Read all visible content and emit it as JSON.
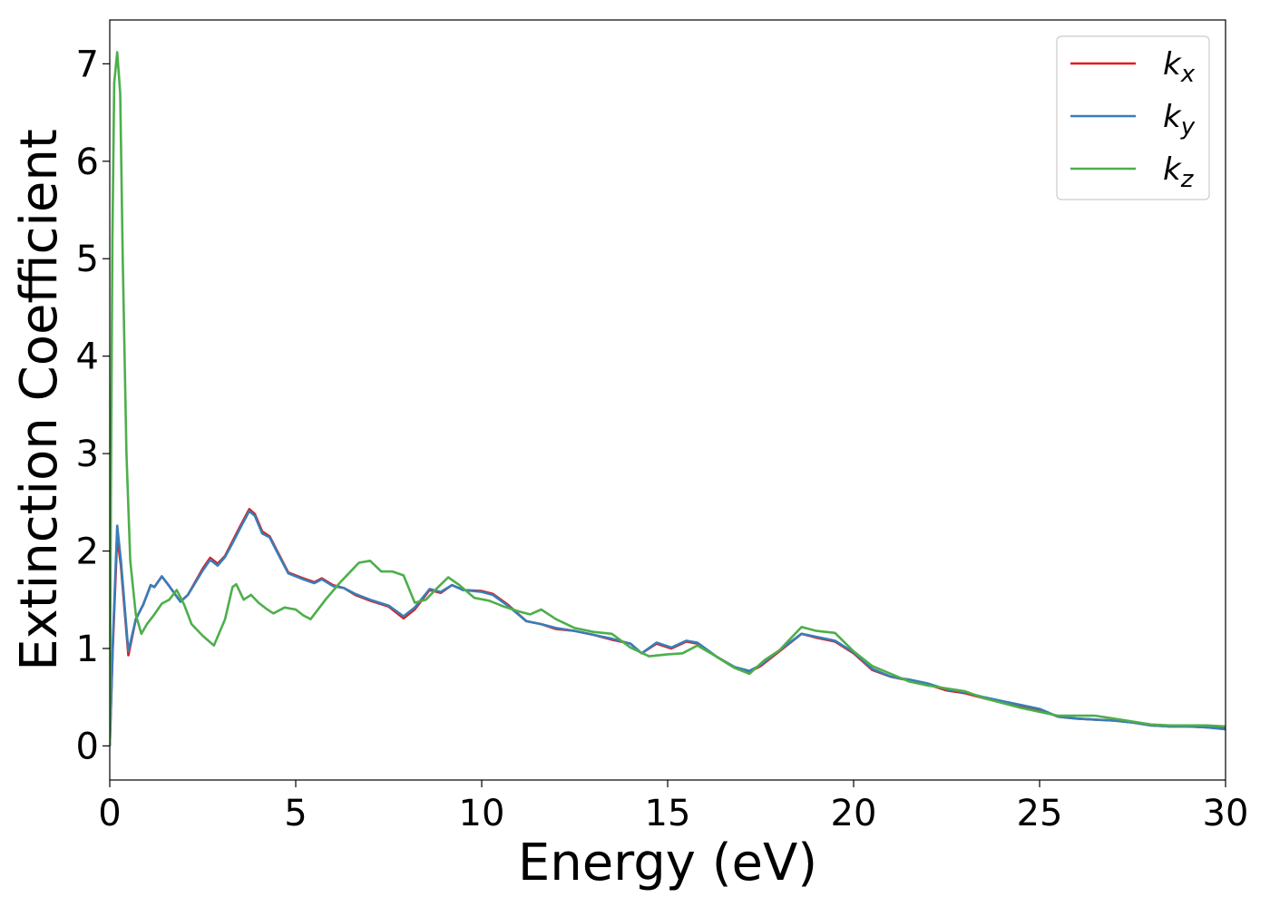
{
  "chart_data": {
    "type": "line",
    "title": "",
    "xlabel": "Energy (eV)",
    "ylabel": "Extinction Coefficient",
    "xlim": [
      0,
      30
    ],
    "ylim": [
      -0.35,
      7.45
    ],
    "xticks": [
      0,
      5,
      10,
      15,
      20,
      25,
      30
    ],
    "xtick_labels": [
      "0",
      "5",
      "10",
      "15",
      "20",
      "25",
      "30"
    ],
    "yticks": [
      0,
      1,
      2,
      3,
      4,
      5,
      6,
      7
    ],
    "ytick_labels": [
      "0",
      "1",
      "2",
      "3",
      "4",
      "5",
      "6",
      "7"
    ],
    "grid": false,
    "legend_position": "top-right",
    "series": [
      {
        "name": "k",
        "subscript": "x",
        "color": "#e41a1c",
        "points": [
          [
            0,
            0
          ],
          [
            0.08,
            1.0
          ],
          [
            0.2,
            2.15
          ],
          [
            0.3,
            1.85
          ],
          [
            0.5,
            0.93
          ],
          [
            0.7,
            1.3
          ],
          [
            0.9,
            1.45
          ],
          [
            1.1,
            1.65
          ],
          [
            1.2,
            1.63
          ],
          [
            1.4,
            1.74
          ],
          [
            1.6,
            1.64
          ],
          [
            1.9,
            1.48
          ],
          [
            2.1,
            1.55
          ],
          [
            2.5,
            1.82
          ],
          [
            2.7,
            1.93
          ],
          [
            2.9,
            1.87
          ],
          [
            3.1,
            1.95
          ],
          [
            3.3,
            2.1
          ],
          [
            3.5,
            2.25
          ],
          [
            3.75,
            2.43
          ],
          [
            3.9,
            2.38
          ],
          [
            4.1,
            2.2
          ],
          [
            4.3,
            2.15
          ],
          [
            4.5,
            2.0
          ],
          [
            4.8,
            1.78
          ],
          [
            5.2,
            1.72
          ],
          [
            5.5,
            1.68
          ],
          [
            5.7,
            1.72
          ],
          [
            6.0,
            1.65
          ],
          [
            6.3,
            1.62
          ],
          [
            6.6,
            1.55
          ],
          [
            7.0,
            1.49
          ],
          [
            7.5,
            1.43
          ],
          [
            7.9,
            1.31
          ],
          [
            8.2,
            1.4
          ],
          [
            8.6,
            1.6
          ],
          [
            8.9,
            1.57
          ],
          [
            9.2,
            1.65
          ],
          [
            9.5,
            1.6
          ],
          [
            10.0,
            1.59
          ],
          [
            10.3,
            1.56
          ],
          [
            10.7,
            1.45
          ],
          [
            11.2,
            1.28
          ],
          [
            11.6,
            1.25
          ],
          [
            12.0,
            1.2
          ],
          [
            12.5,
            1.18
          ],
          [
            13.0,
            1.14
          ],
          [
            13.5,
            1.09
          ],
          [
            14.0,
            1.05
          ],
          [
            14.3,
            0.95
          ],
          [
            14.7,
            1.05
          ],
          [
            15.1,
            1.0
          ],
          [
            15.5,
            1.07
          ],
          [
            15.8,
            1.05
          ],
          [
            16.3,
            0.92
          ],
          [
            16.8,
            0.8
          ],
          [
            17.2,
            0.76
          ],
          [
            17.5,
            0.82
          ],
          [
            18.0,
            0.97
          ],
          [
            18.6,
            1.15
          ],
          [
            19.0,
            1.11
          ],
          [
            19.5,
            1.07
          ],
          [
            20.0,
            0.95
          ],
          [
            20.5,
            0.78
          ],
          [
            21.0,
            0.71
          ],
          [
            21.5,
            0.67
          ],
          [
            22.0,
            0.63
          ],
          [
            22.5,
            0.57
          ],
          [
            23.0,
            0.54
          ],
          [
            23.5,
            0.49
          ],
          [
            24.0,
            0.45
          ],
          [
            24.5,
            0.41
          ],
          [
            25.0,
            0.37
          ],
          [
            25.5,
            0.3
          ],
          [
            26.0,
            0.28
          ],
          [
            26.5,
            0.27
          ],
          [
            27.0,
            0.26
          ],
          [
            27.5,
            0.24
          ],
          [
            28.0,
            0.21
          ],
          [
            28.5,
            0.2
          ],
          [
            29.0,
            0.2
          ],
          [
            29.5,
            0.19
          ],
          [
            30.0,
            0.18
          ]
        ]
      },
      {
        "name": "k",
        "subscript": "y",
        "color": "#377eb8",
        "points": [
          [
            0,
            0
          ],
          [
            0.08,
            1.05
          ],
          [
            0.2,
            2.26
          ],
          [
            0.3,
            1.9
          ],
          [
            0.5,
            0.97
          ],
          [
            0.7,
            1.3
          ],
          [
            0.9,
            1.45
          ],
          [
            1.1,
            1.65
          ],
          [
            1.2,
            1.63
          ],
          [
            1.4,
            1.74
          ],
          [
            1.6,
            1.64
          ],
          [
            1.9,
            1.48
          ],
          [
            2.1,
            1.55
          ],
          [
            2.5,
            1.8
          ],
          [
            2.7,
            1.91
          ],
          [
            2.9,
            1.85
          ],
          [
            3.1,
            1.94
          ],
          [
            3.3,
            2.08
          ],
          [
            3.5,
            2.23
          ],
          [
            3.75,
            2.41
          ],
          [
            3.9,
            2.36
          ],
          [
            4.1,
            2.18
          ],
          [
            4.3,
            2.14
          ],
          [
            4.5,
            1.99
          ],
          [
            4.8,
            1.77
          ],
          [
            5.2,
            1.71
          ],
          [
            5.5,
            1.67
          ],
          [
            5.7,
            1.71
          ],
          [
            6.0,
            1.64
          ],
          [
            6.3,
            1.62
          ],
          [
            6.6,
            1.56
          ],
          [
            7.0,
            1.5
          ],
          [
            7.5,
            1.44
          ],
          [
            7.9,
            1.33
          ],
          [
            8.2,
            1.42
          ],
          [
            8.6,
            1.61
          ],
          [
            8.9,
            1.58
          ],
          [
            9.2,
            1.65
          ],
          [
            9.5,
            1.6
          ],
          [
            10.0,
            1.58
          ],
          [
            10.3,
            1.55
          ],
          [
            10.7,
            1.44
          ],
          [
            11.2,
            1.28
          ],
          [
            11.6,
            1.25
          ],
          [
            12.0,
            1.21
          ],
          [
            12.5,
            1.18
          ],
          [
            13.0,
            1.14
          ],
          [
            13.5,
            1.1
          ],
          [
            14.0,
            1.05
          ],
          [
            14.3,
            0.95
          ],
          [
            14.7,
            1.06
          ],
          [
            15.1,
            1.01
          ],
          [
            15.5,
            1.08
          ],
          [
            15.8,
            1.06
          ],
          [
            16.3,
            0.92
          ],
          [
            16.8,
            0.81
          ],
          [
            17.2,
            0.77
          ],
          [
            17.5,
            0.83
          ],
          [
            18.0,
            0.98
          ],
          [
            18.6,
            1.15
          ],
          [
            19.0,
            1.12
          ],
          [
            19.5,
            1.08
          ],
          [
            20.0,
            0.96
          ],
          [
            20.5,
            0.79
          ],
          [
            21.0,
            0.71
          ],
          [
            21.5,
            0.68
          ],
          [
            22.0,
            0.64
          ],
          [
            22.5,
            0.58
          ],
          [
            23.0,
            0.55
          ],
          [
            23.5,
            0.5
          ],
          [
            24.0,
            0.46
          ],
          [
            24.5,
            0.42
          ],
          [
            25.0,
            0.38
          ],
          [
            25.5,
            0.3
          ],
          [
            26.0,
            0.28
          ],
          [
            26.5,
            0.27
          ],
          [
            27.0,
            0.26
          ],
          [
            27.5,
            0.24
          ],
          [
            28.0,
            0.21
          ],
          [
            28.5,
            0.2
          ],
          [
            29.0,
            0.2
          ],
          [
            29.5,
            0.19
          ],
          [
            30.0,
            0.17
          ]
        ]
      },
      {
        "name": "k",
        "subscript": "z",
        "color": "#4daf4a",
        "points": [
          [
            0,
            0
          ],
          [
            0.03,
            2.5
          ],
          [
            0.07,
            5.2
          ],
          [
            0.12,
            6.8
          ],
          [
            0.2,
            7.12
          ],
          [
            0.28,
            6.7
          ],
          [
            0.35,
            5.0
          ],
          [
            0.45,
            3.0
          ],
          [
            0.55,
            1.9
          ],
          [
            0.7,
            1.35
          ],
          [
            0.85,
            1.15
          ],
          [
            1.0,
            1.25
          ],
          [
            1.2,
            1.35
          ],
          [
            1.4,
            1.46
          ],
          [
            1.6,
            1.5
          ],
          [
            1.8,
            1.6
          ],
          [
            2.0,
            1.45
          ],
          [
            2.2,
            1.25
          ],
          [
            2.5,
            1.13
          ],
          [
            2.8,
            1.03
          ],
          [
            3.1,
            1.3
          ],
          [
            3.3,
            1.63
          ],
          [
            3.4,
            1.66
          ],
          [
            3.6,
            1.5
          ],
          [
            3.8,
            1.55
          ],
          [
            4.0,
            1.47
          ],
          [
            4.2,
            1.41
          ],
          [
            4.4,
            1.36
          ],
          [
            4.7,
            1.42
          ],
          [
            5.0,
            1.4
          ],
          [
            5.2,
            1.34
          ],
          [
            5.4,
            1.3
          ],
          [
            5.8,
            1.5
          ],
          [
            6.2,
            1.68
          ],
          [
            6.7,
            1.88
          ],
          [
            7.0,
            1.9
          ],
          [
            7.3,
            1.79
          ],
          [
            7.6,
            1.79
          ],
          [
            7.9,
            1.75
          ],
          [
            8.2,
            1.47
          ],
          [
            8.5,
            1.5
          ],
          [
            8.8,
            1.62
          ],
          [
            9.1,
            1.73
          ],
          [
            9.4,
            1.65
          ],
          [
            9.8,
            1.52
          ],
          [
            10.2,
            1.49
          ],
          [
            10.6,
            1.43
          ],
          [
            11.0,
            1.38
          ],
          [
            11.3,
            1.35
          ],
          [
            11.6,
            1.4
          ],
          [
            12.0,
            1.3
          ],
          [
            12.5,
            1.21
          ],
          [
            13.0,
            1.17
          ],
          [
            13.5,
            1.15
          ],
          [
            14.0,
            1.01
          ],
          [
            14.5,
            0.92
          ],
          [
            15.0,
            0.94
          ],
          [
            15.4,
            0.95
          ],
          [
            15.8,
            1.03
          ],
          [
            16.3,
            0.92
          ],
          [
            16.8,
            0.8
          ],
          [
            17.2,
            0.74
          ],
          [
            17.6,
            0.88
          ],
          [
            18.0,
            0.98
          ],
          [
            18.6,
            1.22
          ],
          [
            19.0,
            1.18
          ],
          [
            19.5,
            1.16
          ],
          [
            20.0,
            0.97
          ],
          [
            20.5,
            0.82
          ],
          [
            21.0,
            0.74
          ],
          [
            21.5,
            0.66
          ],
          [
            22.0,
            0.62
          ],
          [
            22.5,
            0.59
          ],
          [
            23.0,
            0.56
          ],
          [
            23.5,
            0.49
          ],
          [
            24.0,
            0.44
          ],
          [
            24.5,
            0.39
          ],
          [
            25.0,
            0.35
          ],
          [
            25.5,
            0.31
          ],
          [
            26.0,
            0.31
          ],
          [
            26.5,
            0.31
          ],
          [
            27.0,
            0.28
          ],
          [
            27.5,
            0.25
          ],
          [
            28.0,
            0.22
          ],
          [
            28.5,
            0.21
          ],
          [
            29.0,
            0.21
          ],
          [
            29.5,
            0.21
          ],
          [
            30.0,
            0.2
          ]
        ]
      }
    ]
  }
}
